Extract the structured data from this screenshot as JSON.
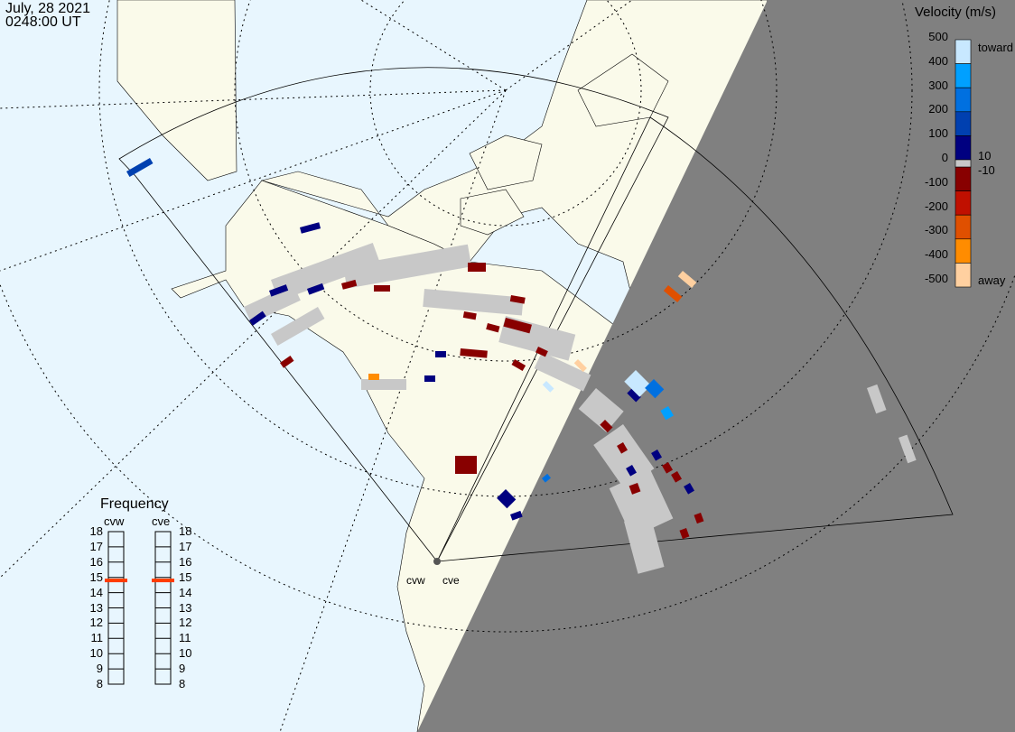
{
  "header": {
    "date": "July, 28 2021",
    "time": "0248:00 UT"
  },
  "velocity_legend": {
    "title": "Velocity (m/s)",
    "ticks": [
      "500",
      "400",
      "300",
      "200",
      "100",
      "0",
      "-100",
      "-200",
      "-300",
      "-400",
      "-500"
    ],
    "toward_label": "toward",
    "away_label": "away",
    "pos_threshold": "10",
    "neg_threshold": "-10",
    "colors": [
      "#c8e8ff",
      "#00a0ff",
      "#0070e0",
      "#0040b0",
      "#000080",
      "#880000",
      "#c01000",
      "#e05000",
      "#ff8c00",
      "#ffd0a0"
    ],
    "ground_scatter_color": "#c8c8c8"
  },
  "frequency_panel": {
    "title": "Frequency",
    "radars": [
      {
        "name": "cvw",
        "frequency_mhz": 14.8
      },
      {
        "name": "cve",
        "frequency_mhz": 14.8
      }
    ],
    "ticks": [
      "18",
      "17",
      "16",
      "15",
      "14",
      "13",
      "12",
      "11",
      "10",
      "9",
      "8"
    ],
    "marker_color": "#ff3c00"
  },
  "map": {
    "ocean_color": "#e8f6fe",
    "land_color": "#fafaea",
    "night_color": "#808080",
    "radar_labels": [
      "cvw",
      "cve"
    ]
  }
}
